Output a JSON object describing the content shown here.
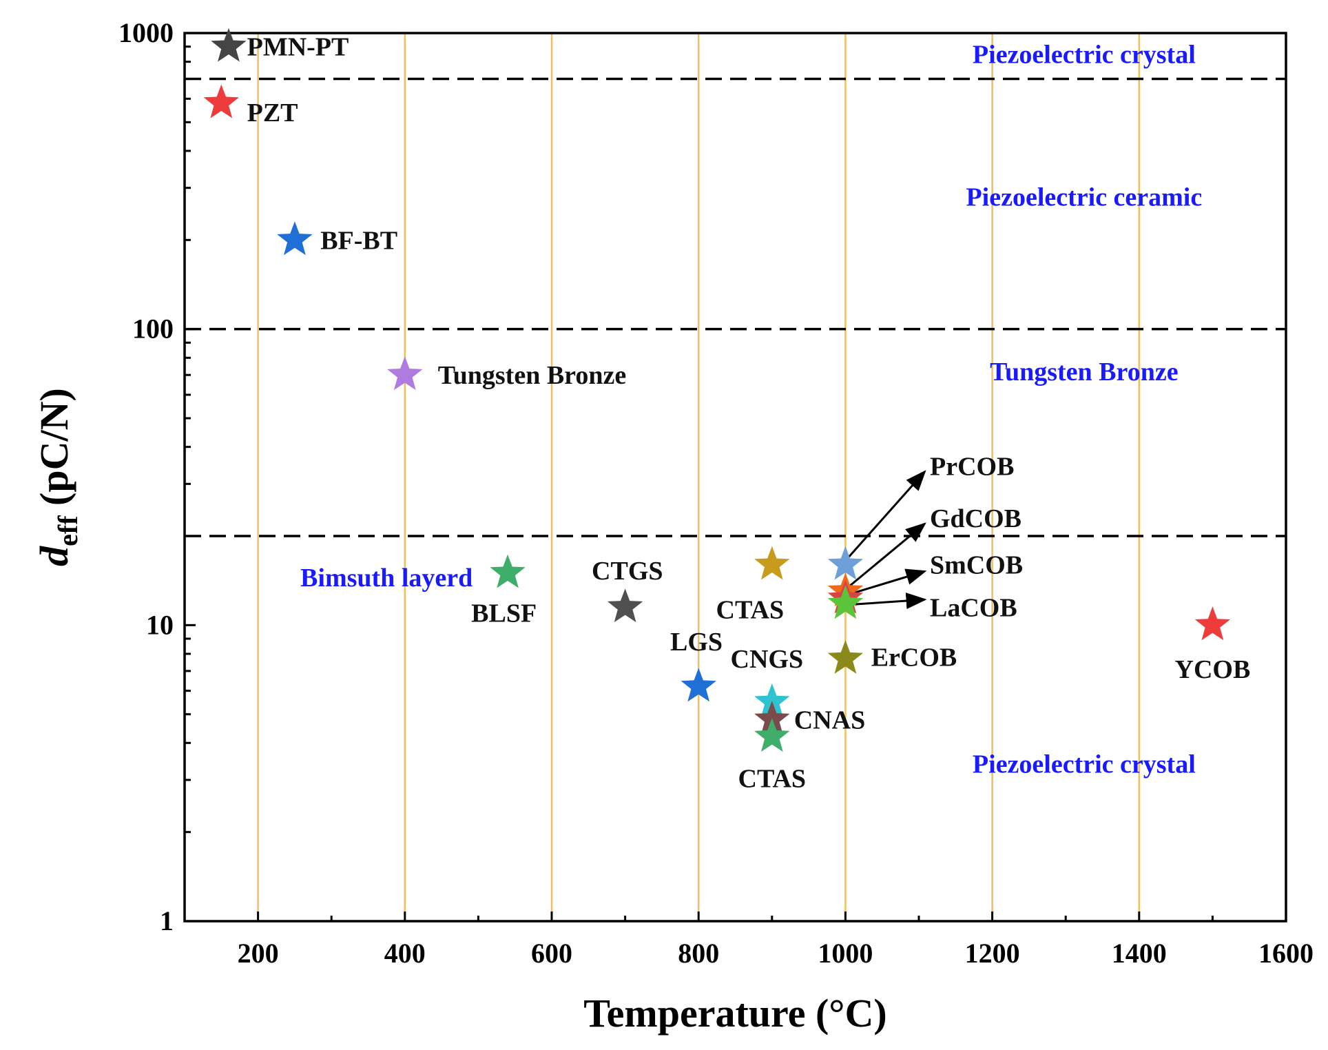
{
  "chart_data": {
    "type": "scatter",
    "xlabel": "Temperature (°C)",
    "ylabel_main": "d",
    "ylabel_sub": "eff",
    "ylabel_unit": " (pC/N)",
    "xlim": [
      100,
      1600
    ],
    "ylim": [
      1,
      1000
    ],
    "yscale": "log",
    "x_ticks": [
      200,
      400,
      600,
      800,
      1000,
      1200,
      1400,
      1600
    ],
    "x_tick_labels": [
      "200",
      "400",
      "600",
      "800",
      "1000",
      "1200",
      "1400",
      "1600"
    ],
    "y_ticks": [
      1,
      10,
      100,
      1000
    ],
    "y_tick_labels": [
      "1",
      "10",
      "100",
      "1000"
    ],
    "vertical_grid_x": [
      200,
      400,
      600,
      800,
      1000,
      1200,
      1400
    ],
    "vertical_grid_color": "#f0c060",
    "boundaries_y": [
      700,
      100,
      20
    ],
    "regions": [
      {
        "label": "Piezoelectric crystal",
        "x": 1325,
        "y": 850
      },
      {
        "label": "Piezoelectric ceramic",
        "x": 1325,
        "y": 280
      },
      {
        "label": "Tungsten Bronze",
        "x": 1325,
        "y": 72
      },
      {
        "label": "Bimsuth layerd",
        "x": 375,
        "y": 14.5
      },
      {
        "label": "Piezoelectric crystal",
        "x": 1325,
        "y": 3.4
      }
    ],
    "points": [
      {
        "name": "PMN-PT",
        "x": 160,
        "y": 900,
        "color": "#454545",
        "lx": 185,
        "ly": 900,
        "anchor": "start"
      },
      {
        "name": "PZT",
        "x": 150,
        "y": 580,
        "color": "#ee3b3b",
        "lx": 185,
        "ly": 540,
        "anchor": "start"
      },
      {
        "name": "BF-BT",
        "x": 250,
        "y": 200,
        "color": "#1f6fd6",
        "lx": 285,
        "ly": 200,
        "anchor": "start"
      },
      {
        "name": "Tungsten Bronze",
        "x": 400,
        "y": 70,
        "color": "#b07be0",
        "lx": 445,
        "ly": 70,
        "anchor": "start"
      },
      {
        "name": "BLSF",
        "x": 540,
        "y": 15,
        "color": "#3fae6b",
        "lx": 535,
        "ly": 11,
        "anchor": "middle"
      },
      {
        "name": "CTGS",
        "x": 700,
        "y": 11.5,
        "color": "#505050",
        "lx": 703,
        "ly": 15.3,
        "anchor": "middle"
      },
      {
        "name": "CTAS",
        "x": 900,
        "y": 16,
        "color": "#c89b1c",
        "lx": 870,
        "ly": 11.3,
        "anchor": "middle"
      },
      {
        "name": "LGS",
        "x": 800,
        "y": 6.2,
        "color": "#1f6fd6",
        "lx": 797,
        "ly": 8.8,
        "anchor": "middle"
      },
      {
        "name": "CNGS",
        "x": 900,
        "y": 5.5,
        "color": "#2ec4cf",
        "lx": 893,
        "ly": 7.7,
        "anchor": "middle"
      },
      {
        "name": "CNAS",
        "x": 900,
        "y": 4.8,
        "color": "#7a4b4b",
        "lx": 930,
        "ly": 4.8,
        "anchor": "start"
      },
      {
        "name": "CTAS",
        "x": 900,
        "y": 4.2,
        "color": "#3fae6b",
        "lx": 900,
        "ly": 3.04,
        "anchor": "middle"
      },
      {
        "name": "PrCOB",
        "x": 1000,
        "y": 16,
        "color": "#6f9fd8",
        "lx": 1115,
        "ly": 34.5,
        "anchor": "start"
      },
      {
        "name": "GdCOB",
        "x": 1000,
        "y": 13,
        "color": "#f0681a",
        "lx": 1115,
        "ly": 23,
        "anchor": "start"
      },
      {
        "name": "SmCOB",
        "x": 1000,
        "y": 12.3,
        "color": "#d64545",
        "lx": 1115,
        "ly": 16,
        "anchor": "start"
      },
      {
        "name": "LaCOB",
        "x": 1000,
        "y": 11.8,
        "color": "#5cc43a",
        "lx": 1115,
        "ly": 11.5,
        "anchor": "start"
      },
      {
        "name": "ErCOB",
        "x": 1000,
        "y": 7.7,
        "color": "#8a8a1a",
        "lx": 1035,
        "ly": 7.8,
        "anchor": "start"
      },
      {
        "name": "YCOB",
        "x": 1500,
        "y": 10,
        "color": "#ee3b3b",
        "lx": 1500,
        "ly": 7.1,
        "anchor": "middle"
      }
    ],
    "arrows": [
      {
        "from": [
          1000,
          16.5
        ],
        "to": [
          1108,
          33
        ]
      },
      {
        "from": [
          1000,
          13.2
        ],
        "to": [
          1108,
          22
        ]
      },
      {
        "from": [
          1000,
          12.6
        ],
        "to": [
          1108,
          15.2
        ]
      },
      {
        "from": [
          1000,
          11.7
        ],
        "to": [
          1108,
          12.2
        ]
      }
    ]
  }
}
